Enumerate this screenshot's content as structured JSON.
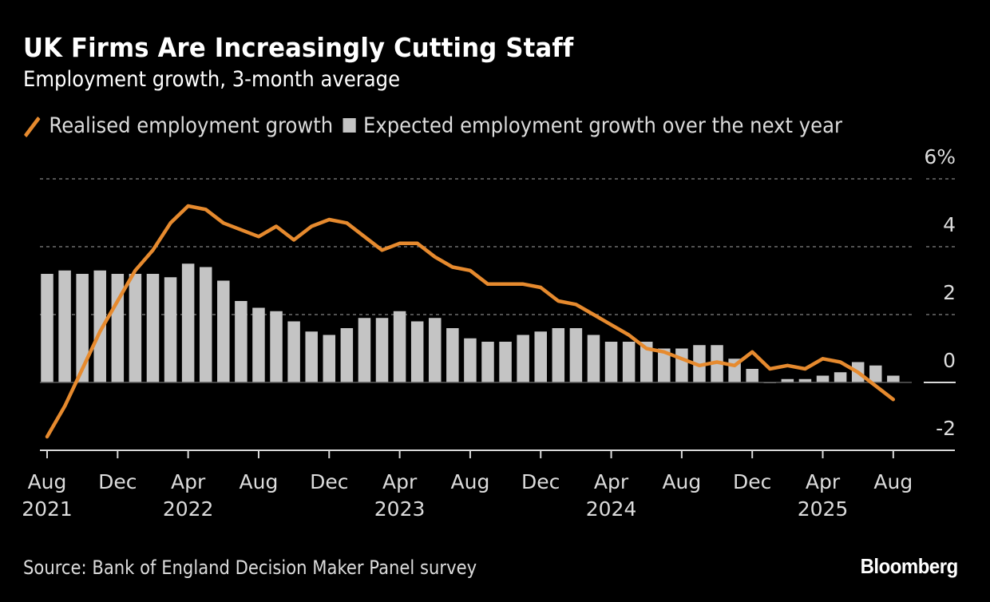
{
  "header": {
    "title": "UK Firms Are Increasingly Cutting Staff",
    "subtitle": "Employment growth, 3-month average"
  },
  "legend": {
    "items": [
      {
        "label": "Realised employment growth",
        "icon": "orange-line-swatch"
      },
      {
        "label": "Expected employment growth over the next year",
        "icon": "gray-bar-swatch"
      }
    ]
  },
  "footer": {
    "source": "Source: Bank of England Decision Maker Panel survey",
    "brand": "Bloomberg"
  },
  "colors": {
    "background": "#000000",
    "line": "#E68A2E",
    "bars": "#C4C4C4",
    "grid": "#6E6E6E",
    "axis": "#D9D9D9",
    "text": "#DCDCDC"
  },
  "chart_data": {
    "type": "bar",
    "title": "UK Firms Are Increasingly Cutting Staff",
    "subtitle": "Employment growth, 3-month average",
    "xlabel": "",
    "ylabel": "",
    "ylim": [
      -2,
      6
    ],
    "yticks": [
      -2,
      0,
      2,
      4,
      6
    ],
    "ytick_labels": [
      "-2",
      "0",
      "2",
      "4",
      "6%"
    ],
    "y_axis_position": "right",
    "grid": true,
    "legend_position": "top-left",
    "x": [
      "Aug 2021",
      "Sep 2021",
      "Oct 2021",
      "Nov 2021",
      "Dec 2021",
      "Jan 2022",
      "Feb 2022",
      "Mar 2022",
      "Apr 2022",
      "May 2022",
      "Jun 2022",
      "Jul 2022",
      "Aug 2022",
      "Sep 2022",
      "Oct 2022",
      "Nov 2022",
      "Dec 2022",
      "Jan 2023",
      "Feb 2023",
      "Mar 2023",
      "Apr 2023",
      "May 2023",
      "Jun 2023",
      "Jul 2023",
      "Aug 2023",
      "Sep 2023",
      "Oct 2023",
      "Nov 2023",
      "Dec 2023",
      "Jan 2024",
      "Feb 2024",
      "Mar 2024",
      "Apr 2024",
      "May 2024",
      "Jun 2024",
      "Jul 2024",
      "Aug 2024",
      "Sep 2024",
      "Oct 2024",
      "Nov 2024",
      "Dec 2024",
      "Jan 2025",
      "Feb 2025",
      "Mar 2025",
      "Apr 2025",
      "May 2025",
      "Jun 2025",
      "Jul 2025",
      "Aug 2025"
    ],
    "xticks": [
      {
        "index": 0,
        "month": "Aug",
        "year": "2021"
      },
      {
        "index": 4,
        "month": "Dec",
        "year": ""
      },
      {
        "index": 8,
        "month": "Apr",
        "year": "2022"
      },
      {
        "index": 12,
        "month": "Aug",
        "year": ""
      },
      {
        "index": 16,
        "month": "Dec",
        "year": ""
      },
      {
        "index": 20,
        "month": "Apr",
        "year": "2023"
      },
      {
        "index": 24,
        "month": "Aug",
        "year": ""
      },
      {
        "index": 28,
        "month": "Dec",
        "year": ""
      },
      {
        "index": 32,
        "month": "Apr",
        "year": "2024"
      },
      {
        "index": 36,
        "month": "Aug",
        "year": ""
      },
      {
        "index": 40,
        "month": "Dec",
        "year": ""
      },
      {
        "index": 44,
        "month": "Apr",
        "year": "2025"
      },
      {
        "index": 48,
        "month": "Aug",
        "year": ""
      }
    ],
    "series": [
      {
        "name": "Realised employment growth",
        "type": "line",
        "color": "#E68A2E",
        "values": [
          -1.6,
          -0.7,
          0.4,
          1.5,
          2.4,
          3.3,
          3.9,
          4.7,
          5.2,
          5.1,
          4.7,
          4.5,
          4.3,
          4.6,
          4.2,
          4.6,
          4.8,
          4.7,
          4.3,
          3.9,
          4.1,
          4.1,
          3.7,
          3.4,
          3.3,
          2.9,
          2.9,
          2.9,
          2.8,
          2.4,
          2.3,
          2.0,
          1.7,
          1.4,
          1.0,
          0.9,
          0.7,
          0.5,
          0.6,
          0.5,
          0.9,
          0.4,
          0.5,
          0.4,
          0.7,
          0.6,
          0.3,
          -0.1,
          -0.5
        ]
      },
      {
        "name": "Expected employment growth over the next year",
        "type": "bar",
        "color": "#C4C4C4",
        "values": [
          3.2,
          3.3,
          3.2,
          3.3,
          3.2,
          3.2,
          3.2,
          3.1,
          3.5,
          3.4,
          3.0,
          2.4,
          2.2,
          2.1,
          1.8,
          1.5,
          1.4,
          1.6,
          1.9,
          1.9,
          2.1,
          1.8,
          1.9,
          1.6,
          1.3,
          1.2,
          1.2,
          1.4,
          1.5,
          1.6,
          1.6,
          1.4,
          1.2,
          1.2,
          1.2,
          1.0,
          1.0,
          1.1,
          1.1,
          0.7,
          0.4,
          0.0,
          0.1,
          0.1,
          0.2,
          0.3,
          0.6,
          0.5,
          0.2
        ]
      }
    ]
  }
}
